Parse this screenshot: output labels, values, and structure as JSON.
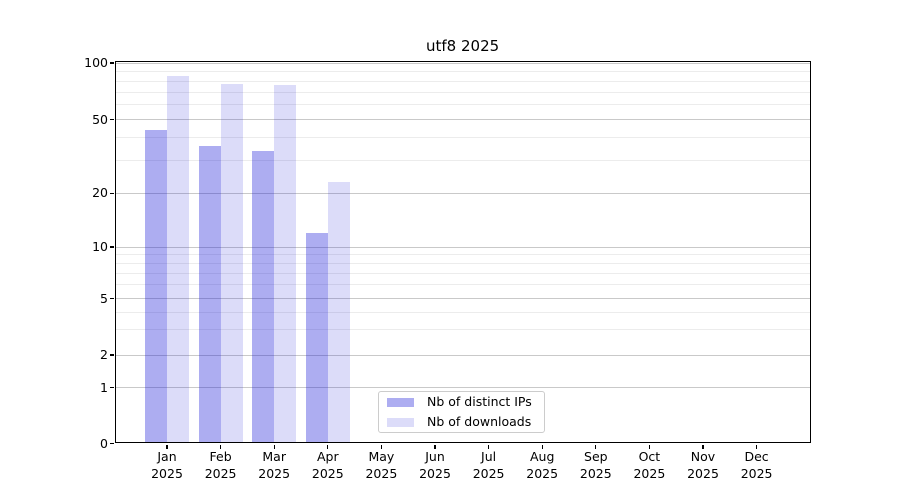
{
  "chart_data": {
    "type": "bar",
    "title": "utf8 2025",
    "year": "2025",
    "categories": [
      "Jan",
      "Feb",
      "Mar",
      "Apr",
      "May",
      "Jun",
      "Jul",
      "Aug",
      "Sep",
      "Oct",
      "Nov",
      "Dec"
    ],
    "series": [
      {
        "name": "Nb of distinct IPs",
        "slug": "distinct-ips",
        "values": [
          44,
          36,
          34,
          12,
          0,
          0,
          0,
          0,
          0,
          0,
          0,
          0
        ],
        "color_hex": "#1414d7",
        "alpha": 0.35,
        "fill": "rgba(20,20,215,0.35)",
        "approx_rendered_hex": "#adadf1"
      },
      {
        "name": "Nb of downloads",
        "slug": "downloads",
        "values": [
          85,
          77,
          76,
          23,
          0,
          0,
          0,
          0,
          0,
          0,
          0,
          0
        ],
        "color_hex": "#1414d7",
        "alpha": 0.15,
        "fill": "rgba(20,20,215,0.15)",
        "approx_rendered_hex": "#dcdcf9"
      }
    ],
    "xlabel": "",
    "ylabel": "",
    "ylim": [
      0,
      100
    ],
    "yscale": "symlog",
    "y_ticks": [
      0,
      1,
      2,
      5,
      10,
      20,
      50,
      100
    ],
    "y_minor_gridlines": [
      3,
      4,
      6,
      7,
      8,
      9,
      30,
      40,
      60,
      70,
      80,
      90
    ],
    "grid": "on (major + minor horizontal)",
    "legend_position": "lower center"
  }
}
